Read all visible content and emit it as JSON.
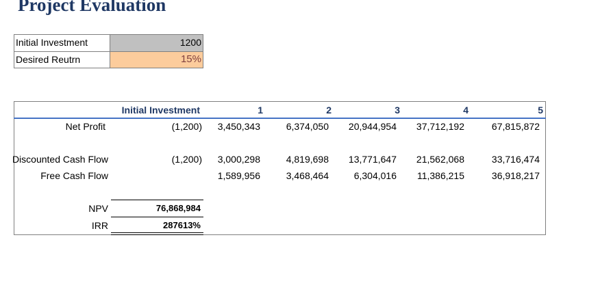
{
  "title": "Project Evaluation",
  "inputs": {
    "investment_label": "Initial Investment",
    "investment_value": "1200",
    "return_label": "Desired Reutrn",
    "return_value": "15%"
  },
  "table": {
    "headers": [
      "Initial Investment",
      "1",
      "2",
      "3",
      "4",
      "5"
    ],
    "rows": [
      {
        "label": "Net Profit",
        "values": [
          "(1,200)",
          "3,450,343",
          "6,374,050",
          "20,944,954",
          "37,712,192",
          "67,815,872"
        ]
      },
      {
        "label": "Discounted Cash Flow",
        "values": [
          "(1,200)",
          "3,000,298",
          "4,819,698",
          "13,771,647",
          "21,562,068",
          "33,716,474"
        ]
      },
      {
        "label": "Free Cash Flow",
        "values": [
          "",
          "1,589,956",
          "3,468,464",
          "6,304,016",
          "11,386,215",
          "36,918,217"
        ]
      }
    ],
    "npv_label": "NPV",
    "npv_value": "76,868,984",
    "irr_label": "IRR",
    "irr_value": "287613%"
  },
  "colors": {
    "title": "#1f3864",
    "investment_fill": "#c0c0c0",
    "return_fill": "#fccc9c",
    "return_text": "#7f3f3f",
    "header_rule": "#4472c4"
  }
}
